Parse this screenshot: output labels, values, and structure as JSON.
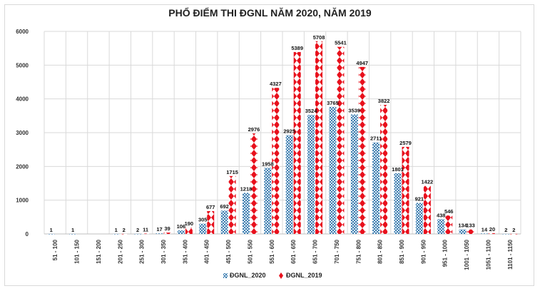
{
  "chart_data": {
    "type": "bar",
    "title": "PHỔ ĐIỂM THI ĐGNL NĂM 2020, NĂM 2019",
    "xlabel": "",
    "ylabel": "",
    "ylim": [
      0,
      6000
    ],
    "yticks": [
      "0",
      "1000",
      "2000",
      "3000",
      "4000",
      "5000",
      "6000"
    ],
    "grid": true,
    "legend_position": "bottom",
    "categories": [
      "51 - 100",
      "101 - 150",
      "151 - 200",
      "201 - 250",
      "251 - 300",
      "301 - 350",
      "351 - 400",
      "401 - 450",
      "451 - 500",
      "501 - 550",
      "551 - 600",
      "601 - 650",
      "651 - 700",
      "701 - 750",
      "751 - 800",
      "801 - 850",
      "851 - 900",
      "901 - 950",
      "951 - 1000",
      "1001 - 1050",
      "1051 - 1100",
      "1101 - 1150"
    ],
    "series": [
      {
        "name": "ĐGNL_2020",
        "color": "#4f8fbf",
        "values": [
          1,
          1,
          0,
          1,
          2,
          17,
          106,
          305,
          692,
          1218,
          1958,
          2925,
          3524,
          3765,
          3539,
          2711,
          1801,
          921,
          438,
          134,
          14,
          2
        ],
        "labels": [
          "1",
          "1",
          "",
          "1",
          "2",
          "17",
          "106",
          "305",
          "692",
          "1218",
          "1958",
          "2925",
          "3524",
          "3765",
          "3539",
          "2711",
          "1801",
          "921",
          "438",
          "134",
          "14",
          "2"
        ]
      },
      {
        "name": "ĐGNL_2019",
        "color": "#e8101c",
        "values": [
          0,
          0,
          0,
          2,
          11,
          39,
          190,
          677,
          1715,
          2976,
          4327,
          5389,
          5708,
          5541,
          4947,
          3822,
          2579,
          1422,
          546,
          133,
          20,
          2
        ],
        "labels": [
          "",
          "",
          "",
          "2",
          "11",
          "39",
          "190",
          "677",
          "1715",
          "2976",
          "4327",
          "5389",
          "5708",
          "5541",
          "4947",
          "3822",
          "2579",
          "1422",
          "546",
          "133",
          "20",
          "2"
        ]
      }
    ]
  }
}
